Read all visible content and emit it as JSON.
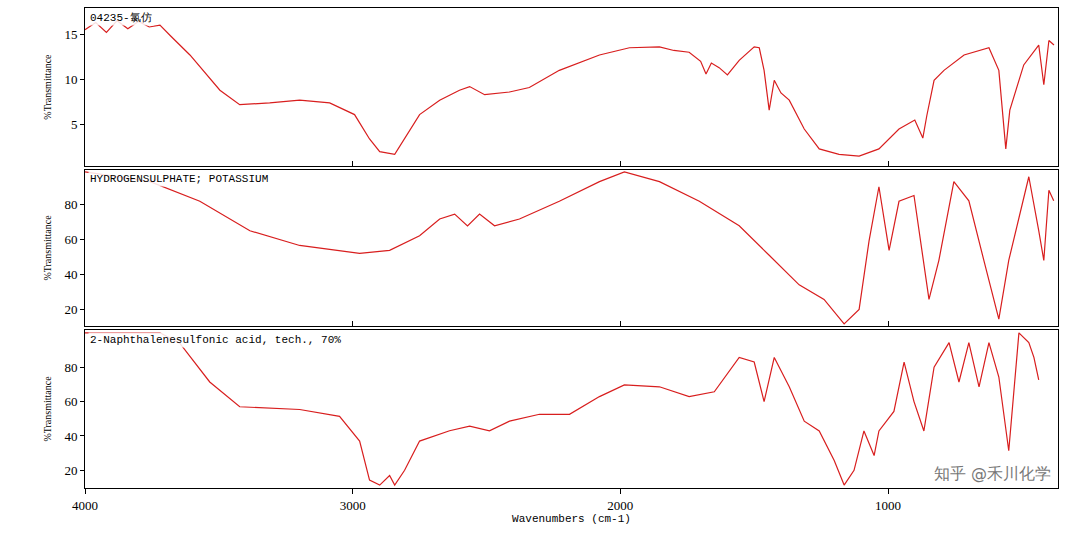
{
  "chart_data": [
    {
      "type": "line",
      "title": "04235-氯仿",
      "y_label": "%Transmittance",
      "color": "#d81e1e",
      "x": [
        4000,
        3960,
        3920,
        3880,
        3840,
        3800,
        3760,
        3720,
        3680,
        3608,
        3496,
        3422,
        3310,
        3198,
        3086,
        2993,
        2937,
        2899,
        2843,
        2806,
        2750,
        2675,
        2601,
        2563,
        2507,
        2414,
        2340,
        2228,
        2078,
        1966,
        1854,
        1800,
        1743,
        1700,
        1680,
        1660,
        1631,
        1600,
        1556,
        1500,
        1481,
        1463,
        1444,
        1425,
        1400,
        1369,
        1313,
        1257,
        1183,
        1108,
        1034,
        959,
        900,
        870,
        855,
        828,
        791,
        716,
        623,
        586,
        560,
        545,
        493,
        437,
        418,
        399,
        380
      ],
      "values": [
        15.5,
        16.3,
        15.2,
        16.5,
        15.6,
        16.4,
        15.8,
        16.0,
        14.8,
        12.7,
        8.8,
        7.2,
        7.4,
        7.7,
        7.4,
        6.1,
        3.4,
        2.0,
        1.7,
        3.4,
        6.1,
        7.7,
        8.8,
        9.2,
        8.3,
        8.6,
        9.1,
        11.0,
        12.7,
        13.5,
        13.6,
        13.2,
        13.0,
        12.0,
        10.6,
        11.8,
        11.3,
        10.5,
        12.1,
        13.6,
        13.5,
        11.0,
        6.6,
        9.9,
        8.5,
        7.7,
        4.5,
        2.3,
        1.7,
        1.5,
        2.3,
        4.5,
        5.5,
        3.5,
        6.0,
        9.9,
        11.0,
        12.7,
        13.5,
        11.0,
        2.3,
        6.6,
        11.6,
        13.8,
        9.4,
        14.3,
        13.8
      ],
      "xlim": [
        4000,
        365
      ],
      "xticks": [
        4000,
        3000,
        2000,
        1000
      ],
      "ylim": [
        0.4,
        17.9
      ],
      "yticks": [
        5,
        10,
        15
      ],
      "tick_labels": "y"
    },
    {
      "type": "line",
      "title": "HYDROGENSULPHATE; POTASSIUM",
      "y_label": "%Transmittance",
      "color": "#d81e1e",
      "x": [
        4000,
        3757,
        3571,
        3384,
        3198,
        2974,
        2862,
        2750,
        2675,
        2619,
        2571,
        2526,
        2470,
        2377,
        2228,
        2078,
        1985,
        1854,
        1705,
        1556,
        1444,
        1332,
        1239,
        1164,
        1108,
        1071,
        1034,
        996,
        959,
        903,
        847,
        810,
        754,
        698,
        642,
        586,
        549,
        474,
        437,
        418,
        399,
        381
      ],
      "values": [
        98.5,
        92.9,
        81.7,
        64.9,
        56.5,
        52,
        53.7,
        62,
        71.6,
        74.4,
        67.7,
        74.4,
        67.7,
        71.6,
        81.7,
        92.9,
        98.5,
        92.9,
        81.7,
        67.7,
        50.9,
        34,
        25.7,
        11.7,
        20,
        59,
        90,
        53.7,
        81.7,
        85,
        25.7,
        48,
        92.9,
        82,
        48,
        14.5,
        48,
        95.7,
        65,
        48,
        88,
        82
      ],
      "xlim": [
        4000,
        365
      ],
      "xticks": [
        4000,
        3000,
        2000,
        1000
      ],
      "ylim": [
        10.5,
        99.6
      ],
      "yticks": [
        20,
        40,
        60,
        80
      ],
      "tick_labels": "y"
    },
    {
      "type": "line",
      "title": "2-Naphthalenesulfonic acid, tech., 70%",
      "y_label": "%Transmittance",
      "x_label": "Wavenumbers (cm-1)",
      "color": "#d81e1e",
      "x": [
        4000,
        3720,
        3646,
        3534,
        3422,
        3198,
        3049,
        2974,
        2937,
        2899,
        2862,
        2843,
        2806,
        2750,
        2638,
        2563,
        2489,
        2414,
        2302,
        2190,
        2078,
        1985,
        1854,
        1743,
        1649,
        1556,
        1500,
        1463,
        1425,
        1369,
        1313,
        1257,
        1201,
        1164,
        1127,
        1090,
        1052,
        1034,
        978,
        940,
        903,
        866,
        828,
        772,
        735,
        698,
        660,
        623,
        586,
        549,
        511,
        474,
        455,
        437
      ],
      "values": [
        100,
        100,
        94,
        71.4,
        57,
        55.4,
        51.4,
        37,
        14.3,
        11.4,
        17,
        11.4,
        20,
        37,
        43,
        45.7,
        43,
        48.6,
        52.6,
        52.6,
        62.9,
        69.7,
        68.6,
        62.9,
        65.7,
        85.7,
        83,
        60,
        85.7,
        68.6,
        48.6,
        42.9,
        25.7,
        11.4,
        20,
        42.9,
        28.6,
        42.9,
        54.3,
        82.9,
        60,
        42.9,
        80,
        94.3,
        71.4,
        94.3,
        68.6,
        94.3,
        74.3,
        31.4,
        100,
        94.3,
        85.7,
        72.6
      ],
      "xlim": [
        4000,
        365
      ],
      "xticks": [
        4000,
        3000,
        2000,
        1000
      ],
      "ylim": [
        9.7,
        101.7
      ],
      "yticks": [
        20,
        40,
        60,
        80
      ],
      "annotations": [
        "知乎 @禾川化学"
      ]
    }
  ]
}
